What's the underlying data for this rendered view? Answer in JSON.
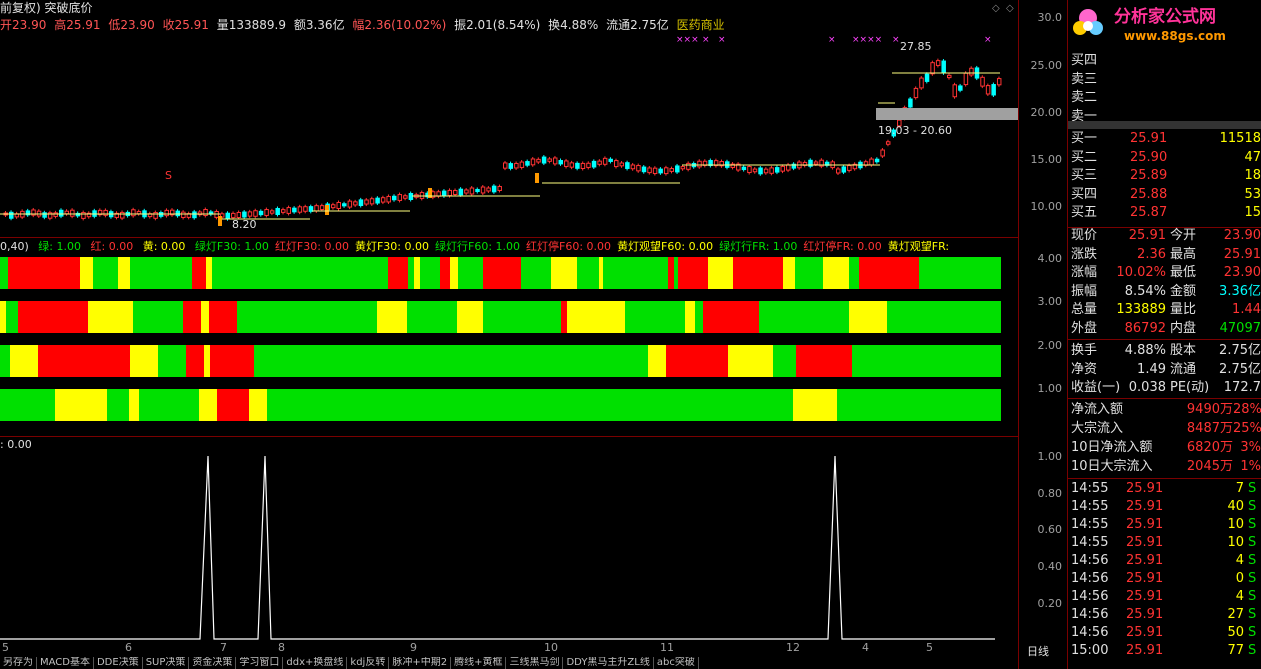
{
  "title": {
    "mode": "前复权)",
    "indicator": "突破底价"
  },
  "quote_line": {
    "open": "开23.90",
    "high": "高25.91",
    "low": "低23.90",
    "close": "收25.91",
    "volume": "量133889.9",
    "amount": "额3.36亿",
    "change": "幅2.36(10.02%)",
    "amplitude": "振2.01(8.54%)",
    "turnover": "换4.88%",
    "float": "流通2.75亿",
    "industry": "医药商业"
  },
  "price_axis": [
    "30.0",
    "25.00",
    "20.00",
    "15.00",
    "10.00"
  ],
  "chart_annotations": {
    "high_label": "27.85",
    "range_label": "19.03 - 20.60",
    "low_label": "8.20",
    "s_marker": "S",
    "x_marks": [
      "×××",
      "×",
      "×",
      "×",
      "××××",
      "×",
      "×"
    ]
  },
  "indicator_line": {
    "prefix": "0,40)",
    "green": "绿: 1.00",
    "red": "红: 0.00",
    "yellow": "黄: 0.00",
    "items": [
      {
        "label": "绿灯F30: 1.00",
        "color": "green"
      },
      {
        "label": "红灯F30: 0.00",
        "color": "red"
      },
      {
        "label": "黄灯F30: 0.00",
        "color": "yellow"
      },
      {
        "label": "绿灯行F60: 1.00",
        "color": "green"
      },
      {
        "label": "红灯停F60: 0.00",
        "color": "red"
      },
      {
        "label": "黄灯观望F60: 0.00",
        "color": "yellow"
      },
      {
        "label": "绿灯行FR: 1.00",
        "color": "green"
      },
      {
        "label": "红灯停FR: 0.00",
        "color": "red"
      },
      {
        "label": "黄灯观望FR:",
        "color": "yellow"
      }
    ]
  },
  "indicator_axis": [
    "4.00",
    "3.00",
    "2.00",
    "1.00"
  ],
  "bottom_panel": {
    "label": ": 0.00",
    "axis": [
      "1.00",
      "0.80",
      "0.60",
      "0.40",
      "0.20"
    ]
  },
  "dates": [
    "5",
    "6",
    "7",
    "8",
    "9",
    "10",
    "11",
    "12",
    "4",
    "5"
  ],
  "tabs": [
    "另存为",
    "MACD基本",
    "DDE决策",
    "SUP决策",
    "资金决策",
    "学习窗口",
    "ddx+换盘线",
    "kdj反转",
    "脉冲+中期2",
    "腾线+黄框",
    "三线黑马剑",
    "DDY黑马主升ZL线",
    "abc突破"
  ],
  "logo": {
    "name": "分析家公式网",
    "url": "www.88gs.com"
  },
  "order_book": {
    "asks": [
      {
        "label": "买四",
        "price": "",
        "vol": ""
      },
      {
        "label": "卖三",
        "price": "",
        "vol": ""
      },
      {
        "label": "卖二",
        "price": "",
        "vol": ""
      },
      {
        "label": "卖一",
        "price": "",
        "vol": ""
      }
    ],
    "bids": [
      {
        "label": "买一",
        "price": "25.91",
        "vol": "11518"
      },
      {
        "label": "买二",
        "price": "25.90",
        "vol": "47"
      },
      {
        "label": "买三",
        "price": "25.89",
        "vol": "18"
      },
      {
        "label": "买四",
        "price": "25.88",
        "vol": "53"
      },
      {
        "label": "买五",
        "price": "25.87",
        "vol": "15"
      }
    ]
  },
  "stats": [
    {
      "l1": "现价",
      "v1": "25.91",
      "c1": "red",
      "l2": "今开",
      "v2": "23.90",
      "c2": "red"
    },
    {
      "l1": "涨跌",
      "v1": "2.36",
      "c1": "red",
      "l2": "最高",
      "v2": "25.91",
      "c2": "red"
    },
    {
      "l1": "涨幅",
      "v1": "10.02%",
      "c1": "red",
      "l2": "最低",
      "v2": "23.90",
      "c2": "red"
    },
    {
      "l1": "振幅",
      "v1": "8.54%",
      "c1": "white",
      "l2": "金额",
      "v2": "3.36亿",
      "c2": "cyan"
    },
    {
      "l1": "总量",
      "v1": "133889",
      "c1": "gold",
      "l2": "量比",
      "v2": "1.44",
      "c2": "red"
    },
    {
      "l1": "外盘",
      "v1": "86792",
      "c1": "red",
      "l2": "内盘",
      "v2": "47097",
      "c2": "green"
    }
  ],
  "stats2": [
    {
      "l1": "换手",
      "v1": "4.88%",
      "l2": "股本",
      "v2": "2.75亿"
    },
    {
      "l1": "净资",
      "v1": "1.49",
      "l2": "流通",
      "v2": "2.75亿"
    },
    {
      "l1": "收益(一)",
      "v1": "0.038",
      "l2": "PE(动)",
      "v2": "172.7"
    }
  ],
  "flows": [
    {
      "label": "净流入额",
      "value": "9490万",
      "pct": "28%"
    },
    {
      "label": "大宗流入",
      "value": "8487万",
      "pct": "25%"
    },
    {
      "label": "10日净流入额",
      "value": "6820万",
      "pct": "3%"
    },
    {
      "label": "10日大宗流入",
      "value": "2045万",
      "pct": "1%"
    }
  ],
  "ticks": [
    {
      "time": "14:55",
      "price": "25.91",
      "vol": "7",
      "side": "S"
    },
    {
      "time": "14:55",
      "price": "25.91",
      "vol": "40",
      "side": "S"
    },
    {
      "time": "14:55",
      "price": "25.91",
      "vol": "10",
      "side": "S"
    },
    {
      "time": "14:55",
      "price": "25.91",
      "vol": "10",
      "side": "S"
    },
    {
      "time": "14:56",
      "price": "25.91",
      "vol": "4",
      "side": "S"
    },
    {
      "time": "14:56",
      "price": "25.91",
      "vol": "0",
      "side": "S"
    },
    {
      "time": "14:56",
      "price": "25.91",
      "vol": "4",
      "side": "S"
    },
    {
      "time": "14:56",
      "price": "25.91",
      "vol": "27",
      "side": "S"
    },
    {
      "time": "14:56",
      "price": "25.91",
      "vol": "50",
      "side": "S"
    },
    {
      "time": "15:00",
      "price": "25.91",
      "vol": "77",
      "side": "S"
    }
  ],
  "period_label": "日线",
  "colors": {
    "green": "#00e000",
    "red": "#ff0000",
    "yellow": "#ffff00",
    "up": "#ff3333",
    "down": "#00ffff"
  }
}
